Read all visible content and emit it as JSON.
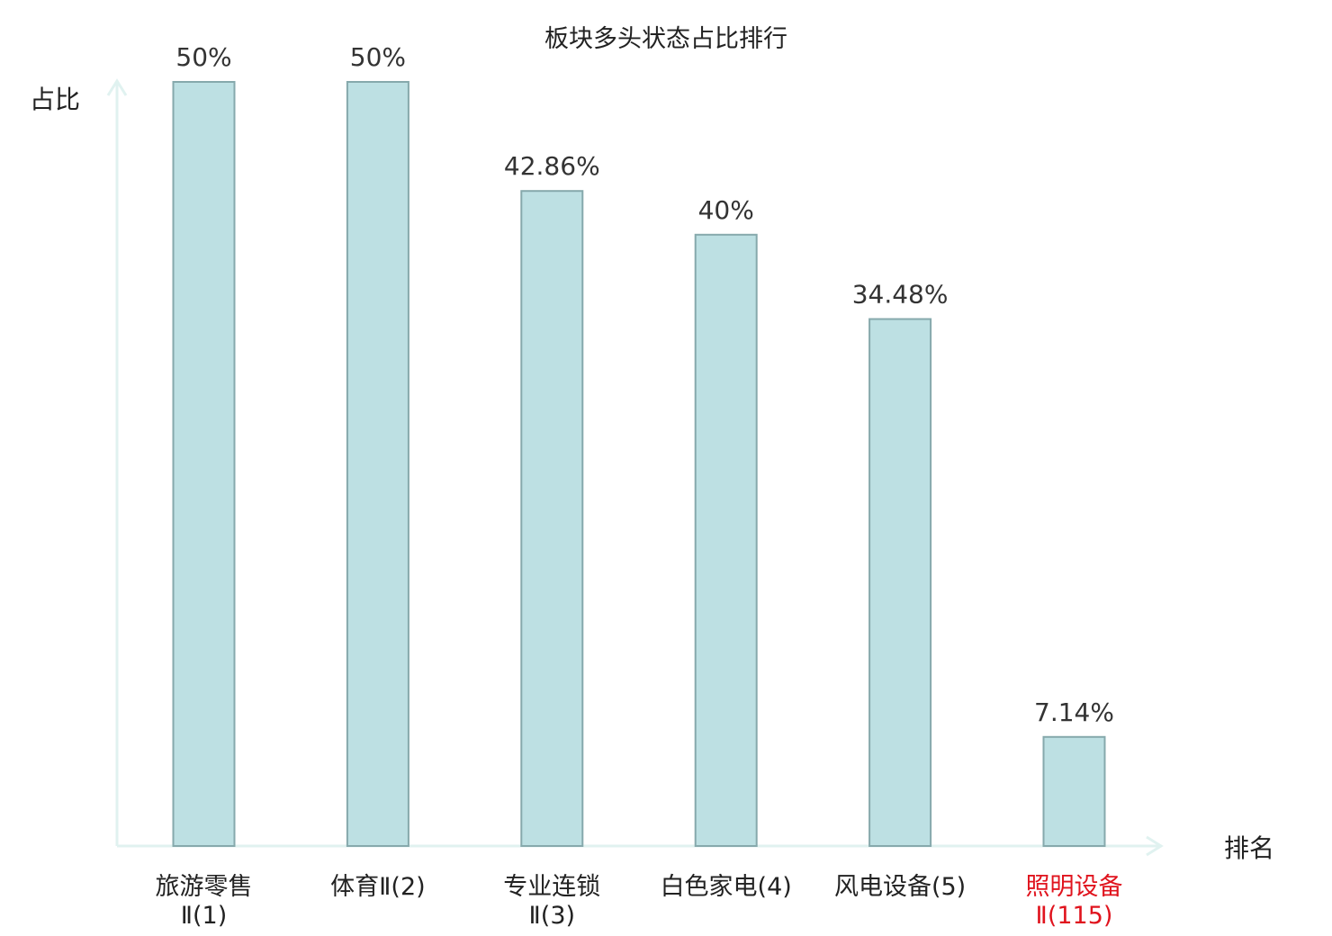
{
  "chart_data": {
    "type": "bar",
    "title": "板块多头状态占比排行",
    "ylabel": "占比",
    "xlabel": "排名",
    "categories": [
      {
        "line1": "旅游零售",
        "line2": "Ⅱ(1)",
        "highlight": false
      },
      {
        "line1": "体育Ⅱ(2)",
        "line2": "",
        "highlight": false
      },
      {
        "line1": "专业连锁",
        "line2": "Ⅱ(3)",
        "highlight": false
      },
      {
        "line1": "白色家电(4)",
        "line2": "",
        "highlight": false
      },
      {
        "line1": "风电设备(5)",
        "line2": "",
        "highlight": false
      },
      {
        "line1": "照明设备",
        "line2": "Ⅱ(115)",
        "highlight": true
      }
    ],
    "values": [
      50,
      50,
      42.86,
      40,
      34.48,
      7.14
    ],
    "value_labels": [
      "50%",
      "50%",
      "42.86%",
      "40%",
      "34.48%",
      "7.14%"
    ],
    "ylim": [
      0,
      50
    ],
    "grid": false,
    "colors": {
      "bar_fill": "#bde0e3",
      "bar_stroke": "#86a9ac",
      "axis": "#e0f2f0",
      "highlight_text": "#e0141e"
    }
  }
}
